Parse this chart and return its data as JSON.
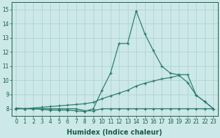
{
  "x": [
    0,
    1,
    2,
    3,
    4,
    5,
    6,
    7,
    8,
    9,
    10,
    11,
    12,
    13,
    14,
    15,
    16,
    17,
    18,
    19,
    20,
    21,
    22,
    23
  ],
  "line1": [
    8.05,
    8.0,
    8.0,
    7.95,
    7.9,
    7.9,
    7.9,
    7.85,
    7.8,
    8.0,
    9.3,
    10.5,
    12.6,
    12.6,
    14.9,
    13.3,
    12.1,
    11.0,
    10.5,
    10.4,
    10.4,
    8.95,
    8.5,
    8.0
  ],
  "line2": [
    8.0,
    8.0,
    8.05,
    8.1,
    8.15,
    8.2,
    8.25,
    8.3,
    8.35,
    8.45,
    8.7,
    8.9,
    9.1,
    9.3,
    9.6,
    9.8,
    9.95,
    10.1,
    10.2,
    10.35,
    9.85,
    8.95,
    8.5,
    8.0
  ],
  "line3": [
    8.0,
    8.0,
    8.0,
    8.0,
    8.0,
    8.0,
    8.0,
    8.0,
    7.85,
    7.85,
    8.0,
    8.0,
    8.0,
    8.0,
    8.0,
    8.0,
    8.0,
    8.0,
    8.0,
    8.0,
    8.0,
    8.0,
    8.0,
    8.0
  ],
  "line_color": "#2a7b6e",
  "bg_color": "#cce8e8",
  "grid_color": "#aacece",
  "xlabel": "Humidex (Indice chaleur)",
  "ylim": [
    7.5,
    15.5
  ],
  "xlim": [
    -0.5,
    23.5
  ],
  "yticks": [
    8,
    9,
    10,
    11,
    12,
    13,
    14,
    15
  ],
  "xticks": [
    0,
    1,
    2,
    3,
    4,
    5,
    6,
    7,
    8,
    9,
    10,
    11,
    12,
    13,
    14,
    15,
    16,
    17,
    18,
    19,
    20,
    21,
    22,
    23
  ],
  "marker": "+",
  "markersize": 3.5,
  "linewidth": 0.9,
  "font_color": "#1a5a4a",
  "tick_fontsize": 5.5,
  "xlabel_fontsize": 7
}
